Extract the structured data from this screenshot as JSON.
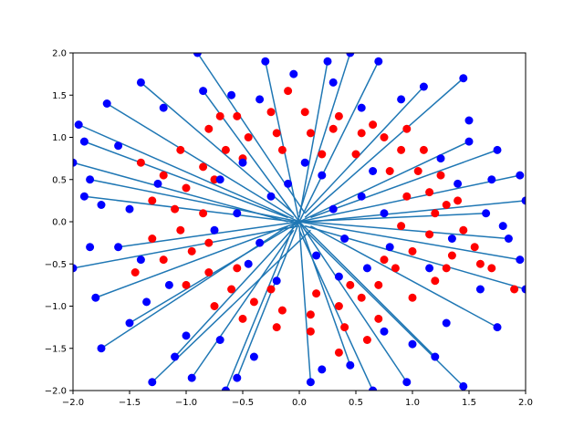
{
  "chart_data": {
    "type": "scatter",
    "title": "",
    "xlabel": "",
    "ylabel": "",
    "xlim": [
      -2.0,
      2.0
    ],
    "ylim": [
      -2.0,
      2.0
    ],
    "grid": false,
    "legend": "none",
    "x_ticks": [
      -2.0,
      -1.5,
      -1.0,
      -0.5,
      0.0,
      0.5,
      1.0,
      1.5,
      2.0
    ],
    "x_tick_labels": [
      "−2.0",
      "−1.5",
      "−1.0",
      "−0.5",
      "0.0",
      "0.5",
      "1.0",
      "1.5",
      "2.0"
    ],
    "y_ticks": [
      -2.0,
      -1.5,
      -1.0,
      -0.5,
      0.0,
      0.5,
      1.0,
      1.5,
      2.0
    ],
    "y_tick_labels": [
      "−2.0",
      "−1.5",
      "−1.0",
      "−0.5",
      "0.0",
      "0.5",
      "1.0",
      "1.5",
      "2.0"
    ],
    "colors": {
      "red_points": "#ff0000",
      "blue_points": "#0000ff",
      "segments": "#1f77b4"
    },
    "description_of_structure": "",
    "red_points": [
      [
        0.1,
        1.05
      ],
      [
        0.3,
        1.1
      ],
      [
        0.55,
        1.05
      ],
      [
        0.75,
        1.0
      ],
      [
        0.9,
        0.85
      ],
      [
        1.05,
        0.6
      ],
      [
        1.15,
        0.35
      ],
      [
        1.2,
        0.1
      ],
      [
        1.15,
        -0.15
      ],
      [
        1.0,
        -0.35
      ],
      [
        0.85,
        -0.55
      ],
      [
        0.7,
        -0.75
      ],
      [
        0.55,
        -0.9
      ],
      [
        0.35,
        -1.0
      ],
      [
        0.1,
        -1.1
      ],
      [
        -0.15,
        -1.05
      ],
      [
        -0.4,
        -0.95
      ],
      [
        -0.6,
        -0.8
      ],
      [
        -0.8,
        -0.6
      ],
      [
        -0.95,
        -0.35
      ],
      [
        -1.05,
        -0.1
      ],
      [
        -1.1,
        0.15
      ],
      [
        -1.0,
        0.4
      ],
      [
        -0.85,
        0.65
      ],
      [
        -0.65,
        0.85
      ],
      [
        -0.45,
        1.0
      ],
      [
        -0.2,
        1.05
      ],
      [
        1.6,
        -0.5
      ],
      [
        1.9,
        -0.8
      ],
      [
        0.2,
        0.8
      ],
      [
        0.5,
        0.8
      ],
      [
        0.8,
        0.6
      ],
      [
        0.95,
        0.3
      ],
      [
        0.9,
        -0.05
      ],
      [
        0.75,
        -0.45
      ],
      [
        0.45,
        -0.75
      ],
      [
        0.15,
        -0.85
      ],
      [
        -0.25,
        -0.8
      ],
      [
        -0.55,
        -0.55
      ],
      [
        -0.8,
        -0.25
      ],
      [
        -0.85,
        0.1
      ],
      [
        -0.75,
        0.5
      ],
      [
        -0.5,
        0.75
      ],
      [
        -0.15,
        0.85
      ],
      [
        1.3,
        0.2
      ],
      [
        1.35,
        -0.4
      ],
      [
        1.2,
        -0.7
      ],
      [
        1.0,
        -0.9
      ],
      [
        0.7,
        -1.15
      ],
      [
        0.4,
        -1.25
      ],
      [
        0.1,
        -1.3
      ],
      [
        -0.2,
        -1.25
      ],
      [
        -0.5,
        -1.15
      ],
      [
        -0.75,
        -1.0
      ],
      [
        -1.0,
        -0.75
      ],
      [
        -1.2,
        -0.45
      ],
      [
        -1.3,
        -0.2
      ],
      [
        -1.3,
        0.25
      ],
      [
        -1.2,
        0.55
      ],
      [
        -1.05,
        0.85
      ],
      [
        -0.8,
        1.1
      ],
      [
        -0.55,
        1.25
      ],
      [
        -0.25,
        1.3
      ],
      [
        0.05,
        1.3
      ],
      [
        0.35,
        1.25
      ],
      [
        0.65,
        1.15
      ],
      [
        0.95,
        1.1
      ],
      [
        1.1,
        0.85
      ],
      [
        1.25,
        0.55
      ],
      [
        1.4,
        0.25
      ],
      [
        1.45,
        -0.1
      ],
      [
        1.3,
        -0.55
      ],
      [
        1.55,
        -0.3
      ],
      [
        1.7,
        -0.55
      ],
      [
        -1.45,
        -0.6
      ],
      [
        -1.4,
        0.7
      ],
      [
        0.6,
        -1.4
      ],
      [
        -0.1,
        1.55
      ],
      [
        0.35,
        -1.55
      ],
      [
        -0.7,
        1.25
      ]
    ],
    "segments": [
      [
        [
          -0.05,
          0.05
        ],
        [
          -1.7,
          1.4
        ]
      ],
      [
        [
          0.05,
          0.1
        ],
        [
          -0.9,
          2.0
        ]
      ],
      [
        [
          -0.1,
          0.0
        ],
        [
          -2.0,
          0.7
        ]
      ],
      [
        [
          0.0,
          -0.05
        ],
        [
          -2.0,
          -0.55
        ]
      ],
      [
        [
          0.1,
          -0.1
        ],
        [
          -1.3,
          -1.9
        ]
      ],
      [
        [
          0.0,
          0.1
        ],
        [
          0.45,
          2.0
        ]
      ],
      [
        [
          0.1,
          0.0
        ],
        [
          2.0,
          0.25
        ]
      ],
      [
        [
          0.05,
          -0.05
        ],
        [
          2.0,
          -0.8
        ]
      ],
      [
        [
          0.0,
          -0.1
        ],
        [
          0.65,
          -2.0
        ]
      ],
      [
        [
          -0.05,
          -0.05
        ],
        [
          -0.65,
          -2.0
        ]
      ],
      [
        [
          0.05,
          0.05
        ],
        [
          1.45,
          1.7
        ]
      ],
      [
        [
          -0.05,
          0.1
        ],
        [
          -1.4,
          1.65
        ]
      ],
      [
        [
          0.1,
          0.05
        ],
        [
          1.75,
          0.85
        ]
      ],
      [
        [
          0.05,
          -0.1
        ],
        [
          1.45,
          -1.95
        ]
      ],
      [
        [
          -0.1,
          -0.05
        ],
        [
          -1.75,
          -1.5
        ]
      ],
      [
        [
          0.0,
          0.05
        ],
        [
          0.25,
          1.9
        ]
      ],
      [
        [
          -0.05,
          0.0
        ],
        [
          -1.9,
          0.3
        ]
      ],
      [
        [
          0.05,
          0.0
        ],
        [
          1.85,
          -0.2
        ]
      ],
      [
        [
          0.0,
          -0.05
        ],
        [
          0.1,
          -1.9
        ]
      ],
      [
        [
          -0.1,
          0.05
        ],
        [
          -1.9,
          0.95
        ]
      ],
      [
        [
          0.05,
          0.1
        ],
        [
          1.1,
          1.6
        ]
      ],
      [
        [
          0.1,
          -0.05
        ],
        [
          1.75,
          -1.25
        ]
      ],
      [
        [
          -0.05,
          -0.1
        ],
        [
          -0.95,
          -1.85
        ]
      ],
      [
        [
          0.0,
          0.0
        ],
        [
          -1.8,
          -0.9
        ]
      ],
      [
        [
          0.0,
          0.0
        ],
        [
          1.95,
          0.55
        ]
      ],
      [
        [
          0.0,
          0.0
        ],
        [
          -0.3,
          1.9
        ]
      ],
      [
        [
          0.0,
          0.0
        ],
        [
          0.95,
          -1.9
        ]
      ],
      [
        [
          0.0,
          0.0
        ],
        [
          -1.6,
          -0.3
        ]
      ],
      [
        [
          0.0,
          0.0
        ],
        [
          1.5,
          0.95
        ]
      ],
      [
        [
          0.0,
          0.0
        ],
        [
          -0.55,
          -1.85
        ]
      ],
      [
        [
          0.0,
          0.0
        ],
        [
          0.7,
          1.9
        ]
      ],
      [
        [
          0.0,
          0.0
        ],
        [
          -1.85,
          0.5
        ]
      ],
      [
        [
          0.0,
          0.0
        ],
        [
          1.95,
          -0.45
        ]
      ],
      [
        [
          0.0,
          0.0
        ],
        [
          -1.1,
          -1.6
        ]
      ],
      [
        [
          0.0,
          0.0
        ],
        [
          0.45,
          -1.7
        ]
      ],
      [
        [
          0.0,
          0.0
        ],
        [
          -0.85,
          1.55
        ]
      ],
      [
        [
          0.0,
          0.0
        ],
        [
          1.65,
          0.1
        ]
      ],
      [
        [
          0.0,
          0.0
        ],
        [
          -1.5,
          -1.2
        ]
      ],
      [
        [
          0.0,
          0.0
        ],
        [
          1.2,
          -1.6
        ]
      ],
      [
        [
          0.0,
          0.0
        ],
        [
          -1.95,
          1.15
        ]
      ]
    ],
    "blue_points": [
      [
        -1.7,
        1.4
      ],
      [
        -0.9,
        2.0
      ],
      [
        -2.0,
        0.7
      ],
      [
        -2.0,
        -0.55
      ],
      [
        -1.3,
        -1.9
      ],
      [
        0.45,
        2.0
      ],
      [
        2.0,
        0.25
      ],
      [
        2.0,
        -0.8
      ],
      [
        0.65,
        -2.0
      ],
      [
        -0.65,
        -2.0
      ],
      [
        1.45,
        1.7
      ],
      [
        -1.4,
        1.65
      ],
      [
        1.75,
        0.85
      ],
      [
        1.45,
        -1.95
      ],
      [
        -1.75,
        -1.5
      ],
      [
        0.25,
        1.9
      ],
      [
        -1.9,
        0.3
      ],
      [
        1.85,
        -0.2
      ],
      [
        0.1,
        -1.9
      ],
      [
        -1.9,
        0.95
      ],
      [
        1.1,
        1.6
      ],
      [
        1.75,
        -1.25
      ],
      [
        -0.95,
        -1.85
      ],
      [
        -1.8,
        -0.9
      ],
      [
        1.95,
        0.55
      ],
      [
        -0.3,
        1.9
      ],
      [
        0.95,
        -1.9
      ],
      [
        -1.6,
        -0.3
      ],
      [
        1.5,
        0.95
      ],
      [
        -0.55,
        -1.85
      ],
      [
        0.7,
        1.9
      ],
      [
        -1.85,
        0.5
      ],
      [
        1.95,
        -0.45
      ],
      [
        -1.1,
        -1.6
      ],
      [
        0.45,
        -1.7
      ],
      [
        -0.85,
        1.55
      ],
      [
        1.65,
        0.1
      ],
      [
        -1.5,
        -1.2
      ],
      [
        1.2,
        -1.6
      ],
      [
        -1.95,
        1.15
      ],
      [
        0.3,
        0.15
      ],
      [
        -0.25,
        0.3
      ],
      [
        0.4,
        -0.2
      ],
      [
        -0.35,
        -0.25
      ],
      [
        0.15,
        -0.4
      ],
      [
        -0.1,
        0.45
      ],
      [
        0.55,
        0.3
      ],
      [
        -0.55,
        0.1
      ],
      [
        0.2,
        0.55
      ],
      [
        -0.45,
        -0.5
      ],
      [
        0.6,
        -0.55
      ],
      [
        -0.7,
        0.5
      ],
      [
        0.75,
        0.1
      ],
      [
        -0.2,
        -0.7
      ],
      [
        0.05,
        0.7
      ],
      [
        -0.75,
        -0.1
      ],
      [
        0.8,
        -0.3
      ],
      [
        0.35,
        -0.65
      ],
      [
        -0.5,
        0.7
      ],
      [
        0.65,
        0.6
      ],
      [
        1.5,
        1.2
      ],
      [
        -1.2,
        1.35
      ],
      [
        1.3,
        -1.2
      ],
      [
        -1.35,
        -0.95
      ],
      [
        1.6,
        -0.8
      ],
      [
        -1.6,
        0.9
      ],
      [
        0.9,
        1.45
      ],
      [
        -0.6,
        1.5
      ],
      [
        1.0,
        -1.45
      ],
      [
        -1.0,
        -1.35
      ],
      [
        1.7,
        0.5
      ],
      [
        -1.75,
        0.2
      ],
      [
        1.8,
        -0.05
      ],
      [
        -1.85,
        -0.3
      ],
      [
        0.3,
        1.65
      ],
      [
        -0.05,
        1.75
      ],
      [
        0.2,
        -1.75
      ],
      [
        -0.4,
        -1.6
      ],
      [
        1.25,
        0.75
      ],
      [
        -1.25,
        0.45
      ],
      [
        1.15,
        -0.55
      ],
      [
        -1.15,
        -0.75
      ],
      [
        0.55,
        1.35
      ],
      [
        -0.35,
        1.45
      ],
      [
        0.75,
        -1.3
      ],
      [
        -0.7,
        -1.4
      ],
      [
        1.4,
        0.45
      ],
      [
        -1.5,
        0.15
      ],
      [
        1.35,
        -0.2
      ],
      [
        -1.4,
        -0.45
      ]
    ]
  },
  "axes": {
    "background": "#ffffff",
    "spine_color": "#000000"
  }
}
